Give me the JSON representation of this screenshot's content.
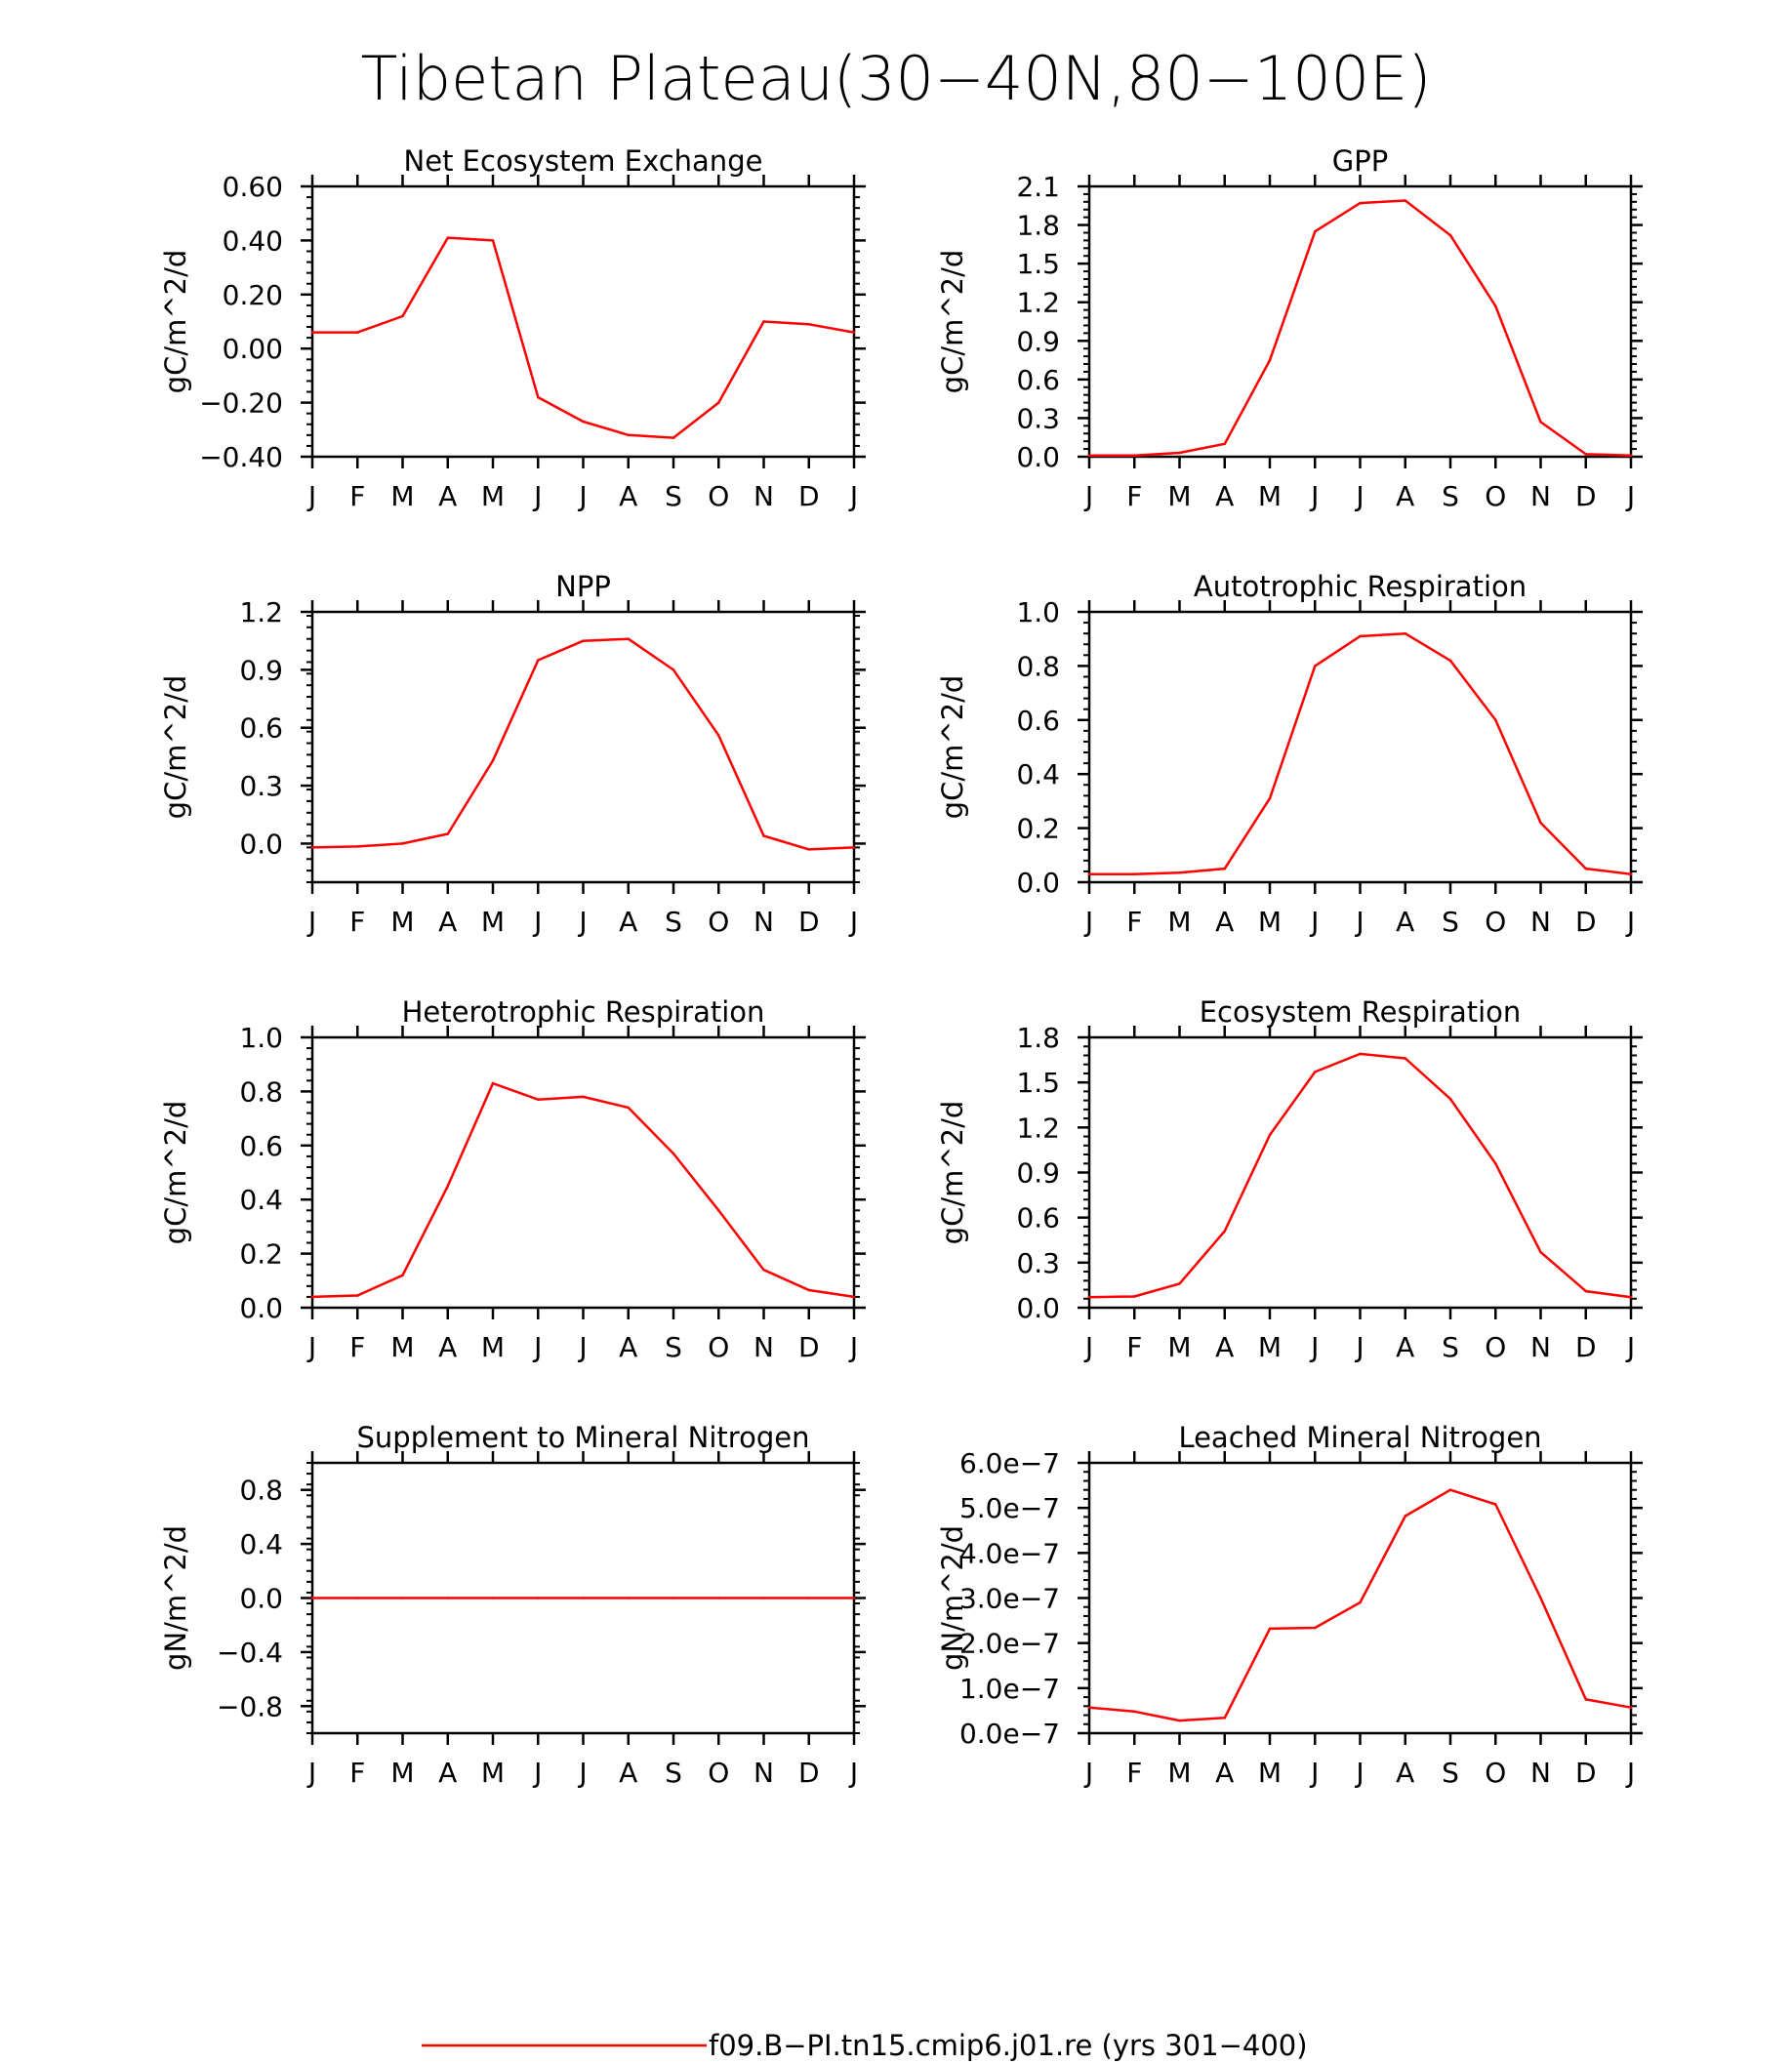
{
  "figure": {
    "title": "Tibetan Plateau(30−40N,80−100E)",
    "line_color": "#ff0000",
    "legend": {
      "label": "f09.B−PI.tn15.cmip6.j01.re (yrs 301−400)"
    }
  },
  "chart_data": [
    {
      "type": "line",
      "title": "Net Ecosystem Exchange",
      "ylabel": "gC/m^2/d",
      "xlabel": "",
      "categories": [
        "J",
        "F",
        "M",
        "A",
        "M",
        "J",
        "J",
        "A",
        "S",
        "O",
        "N",
        "D",
        "J"
      ],
      "ylim": [
        -0.4,
        0.6
      ],
      "yticks": [
        -0.4,
        -0.2,
        0.0,
        0.2,
        0.4,
        0.6
      ],
      "ytick_labels": [
        "−0.40",
        "−0.20",
        "0.00",
        "0.20",
        "0.40",
        "0.60"
      ],
      "series": [
        {
          "values": [
            0.06,
            0.06,
            0.12,
            0.41,
            0.4,
            -0.18,
            -0.27,
            -0.32,
            -0.33,
            -0.2,
            0.1,
            0.09,
            0.06
          ]
        }
      ]
    },
    {
      "type": "line",
      "title": "GPP",
      "ylabel": "gC/m^2/d",
      "xlabel": "",
      "categories": [
        "J",
        "F",
        "M",
        "A",
        "M",
        "J",
        "J",
        "A",
        "S",
        "O",
        "N",
        "D",
        "J"
      ],
      "ylim": [
        0,
        2.1
      ],
      "yticks": [
        0,
        0.3,
        0.6,
        0.9,
        1.2,
        1.5,
        1.8,
        2.1
      ],
      "ytick_labels": [
        "0.0",
        "0.3",
        "0.6",
        "0.9",
        "1.2",
        "1.5",
        "1.8",
        "2.1"
      ],
      "series": [
        {
          "values": [
            0.01,
            0.01,
            0.03,
            0.1,
            0.75,
            1.75,
            1.97,
            1.99,
            1.72,
            1.17,
            0.27,
            0.02,
            0.01
          ]
        }
      ]
    },
    {
      "type": "line",
      "title": "NPP",
      "ylabel": "gC/m^2/d",
      "xlabel": "",
      "categories": [
        "J",
        "F",
        "M",
        "A",
        "M",
        "J",
        "J",
        "A",
        "S",
        "O",
        "N",
        "D",
        "J"
      ],
      "ylim": [
        -0.2,
        1.2
      ],
      "yticks": [
        0.0,
        0.3,
        0.6,
        0.9,
        1.2
      ],
      "ytick_labels": [
        "0.0",
        "0.3",
        "0.6",
        "0.9",
        "1.2"
      ],
      "series": [
        {
          "values": [
            -0.02,
            -0.015,
            0.0,
            0.05,
            0.43,
            0.95,
            1.05,
            1.06,
            0.9,
            0.56,
            0.04,
            -0.03,
            -0.02
          ]
        }
      ]
    },
    {
      "type": "line",
      "title": "Autotrophic Respiration",
      "ylabel": "gC/m^2/d",
      "xlabel": "",
      "categories": [
        "J",
        "F",
        "M",
        "A",
        "M",
        "J",
        "J",
        "A",
        "S",
        "O",
        "N",
        "D",
        "J"
      ],
      "ylim": [
        0,
        1.0
      ],
      "yticks": [
        0,
        0.2,
        0.4,
        0.6,
        0.8,
        1.0
      ],
      "ytick_labels": [
        "0.0",
        "0.2",
        "0.4",
        "0.6",
        "0.8",
        "1.0"
      ],
      "series": [
        {
          "values": [
            0.03,
            0.03,
            0.035,
            0.05,
            0.31,
            0.8,
            0.91,
            0.92,
            0.82,
            0.6,
            0.22,
            0.05,
            0.03
          ]
        }
      ]
    },
    {
      "type": "line",
      "title": "Heterotrophic Respiration",
      "ylabel": "gC/m^2/d",
      "xlabel": "",
      "categories": [
        "J",
        "F",
        "M",
        "A",
        "M",
        "J",
        "J",
        "A",
        "S",
        "O",
        "N",
        "D",
        "J"
      ],
      "ylim": [
        0,
        1.0
      ],
      "yticks": [
        0,
        0.2,
        0.4,
        0.6,
        0.8,
        1.0
      ],
      "ytick_labels": [
        "0.0",
        "0.2",
        "0.4",
        "0.6",
        "0.8",
        "1.0"
      ],
      "series": [
        {
          "values": [
            0.04,
            0.045,
            0.12,
            0.45,
            0.83,
            0.77,
            0.78,
            0.74,
            0.57,
            0.36,
            0.14,
            0.065,
            0.04
          ]
        }
      ]
    },
    {
      "type": "line",
      "title": "Ecosystem Respiration",
      "ylabel": "gC/m^2/d",
      "xlabel": "",
      "categories": [
        "J",
        "F",
        "M",
        "A",
        "M",
        "J",
        "J",
        "A",
        "S",
        "O",
        "N",
        "D",
        "J"
      ],
      "ylim": [
        0,
        1.8
      ],
      "yticks": [
        0,
        0.3,
        0.6,
        0.9,
        1.2,
        1.5,
        1.8
      ],
      "ytick_labels": [
        "0.0",
        "0.3",
        "0.6",
        "0.9",
        "1.2",
        "1.5",
        "1.8"
      ],
      "series": [
        {
          "values": [
            0.07,
            0.075,
            0.16,
            0.51,
            1.15,
            1.57,
            1.69,
            1.66,
            1.39,
            0.96,
            0.37,
            0.11,
            0.07
          ]
        }
      ]
    },
    {
      "type": "line",
      "title": "Supplement to Mineral Nitrogen",
      "ylabel": "gN/m^2/d",
      "xlabel": "",
      "categories": [
        "J",
        "F",
        "M",
        "A",
        "M",
        "J",
        "J",
        "A",
        "S",
        "O",
        "N",
        "D",
        "J"
      ],
      "ylim": [
        -1.0,
        1.0
      ],
      "yticks": [
        -0.8,
        -0.4,
        0.0,
        0.4,
        0.8
      ],
      "ytick_labels": [
        "−0.8",
        "−0.4",
        "0.0",
        "0.4",
        "0.8"
      ],
      "series": [
        {
          "values": [
            0,
            0,
            0,
            0,
            0,
            0,
            0,
            0,
            0,
            0,
            0,
            0,
            0
          ]
        }
      ]
    },
    {
      "type": "line",
      "title": "Leached Mineral Nitrogen",
      "ylabel": "gN/m^2/d",
      "xlabel": "",
      "categories": [
        "J",
        "F",
        "M",
        "A",
        "M",
        "J",
        "J",
        "A",
        "S",
        "O",
        "N",
        "D",
        "J"
      ],
      "ylim": [
        0,
        6e-07
      ],
      "yticks": [
        0,
        1e-07,
        2e-07,
        3e-07,
        4e-07,
        5e-07,
        6e-07
      ],
      "ytick_labels": [
        "0.0e−7",
        "1.0e−7",
        "2.0e−7",
        "3.0e−7",
        "4.0e−7",
        "5.0e−7",
        "6.0e−7"
      ],
      "series": [
        {
          "values": [
            5.7e-08,
            4.8e-08,
            2.8e-08,
            3.4e-08,
            2.32e-07,
            2.34e-07,
            2.9e-07,
            4.82e-07,
            5.4e-07,
            5.08e-07,
            3e-07,
            7.5e-08,
            5.7e-08
          ]
        }
      ]
    }
  ]
}
